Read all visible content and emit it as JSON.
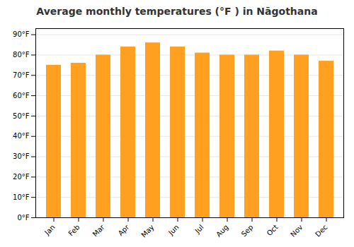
{
  "chart_data": {
    "type": "bar",
    "title": "Average monthly temperatures (°F ) in Nāgothana",
    "categories": [
      "Jan",
      "Feb",
      "Mar",
      "Apr",
      "May",
      "Jun",
      "Jul",
      "Aug",
      "Sep",
      "Oct",
      "Nov",
      "Dec"
    ],
    "values": [
      75,
      76,
      80,
      84,
      86,
      84,
      81,
      80,
      80,
      82,
      80,
      77
    ],
    "color": "#FFA020",
    "ylim": [
      0,
      93
    ],
    "yticks": [
      {
        "value": 0,
        "label": "0°F"
      },
      {
        "value": 10,
        "label": "10°F"
      },
      {
        "value": 20,
        "label": "20°F"
      },
      {
        "value": 30,
        "label": "30°F"
      },
      {
        "value": 40,
        "label": "40°F"
      },
      {
        "value": 50,
        "label": "50°F"
      },
      {
        "value": 60,
        "label": "60°F"
      },
      {
        "value": 70,
        "label": "70°F"
      },
      {
        "value": 80,
        "label": "80°F"
      },
      {
        "value": 90,
        "label": "90°F"
      }
    ],
    "grid": true
  }
}
